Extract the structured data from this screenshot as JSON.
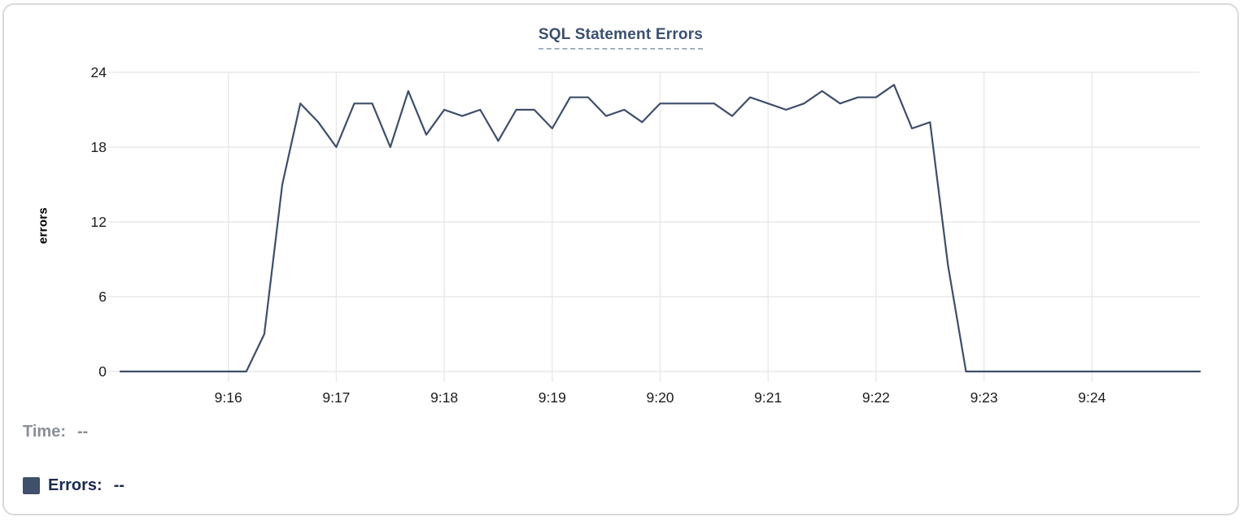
{
  "card": {
    "background": "#ffffff",
    "border_color": "#d9d9d9"
  },
  "chart_data": {
    "type": "line",
    "title": "SQL Statement Errors",
    "xlabel": "",
    "ylabel": "errors",
    "x_tick_labels": [
      "9:16",
      "9:17",
      "9:18",
      "9:19",
      "9:20",
      "9:21",
      "9:22",
      "9:23",
      "9:24"
    ],
    "y_tick_labels": [
      "0",
      "6",
      "12",
      "18",
      "24"
    ],
    "ylim": [
      0,
      24
    ],
    "x_axis_time_range": [
      "9:15:00",
      "9:25:00"
    ],
    "sample_interval_seconds": 10,
    "grid": true,
    "grid_color": "#e8e8e8",
    "axis_text_color": "#1c1c1c",
    "legend_position": "bottom-left",
    "series": [
      {
        "name": "Errors",
        "color": "#3d4e6a",
        "times": [
          "9:15:00",
          "9:15:10",
          "9:15:20",
          "9:15:30",
          "9:15:40",
          "9:15:50",
          "9:16:00",
          "9:16:10",
          "9:16:20",
          "9:16:30",
          "9:16:40",
          "9:16:50",
          "9:17:00",
          "9:17:10",
          "9:17:20",
          "9:17:30",
          "9:17:40",
          "9:17:50",
          "9:18:00",
          "9:18:10",
          "9:18:20",
          "9:18:30",
          "9:18:40",
          "9:18:50",
          "9:19:00",
          "9:19:10",
          "9:19:20",
          "9:19:30",
          "9:19:40",
          "9:19:50",
          "9:20:00",
          "9:20:10",
          "9:20:20",
          "9:20:30",
          "9:20:40",
          "9:20:50",
          "9:21:00",
          "9:21:10",
          "9:21:20",
          "9:21:30",
          "9:21:40",
          "9:21:50",
          "9:22:00",
          "9:22:10",
          "9:22:20",
          "9:22:30",
          "9:22:40",
          "9:22:50",
          "9:23:00",
          "9:23:10",
          "9:23:20",
          "9:23:30",
          "9:23:40",
          "9:23:50",
          "9:24:00",
          "9:24:10",
          "9:24:20",
          "9:24:30",
          "9:24:40",
          "9:24:50",
          "9:25:00"
        ],
        "values": [
          0,
          0,
          0,
          0,
          0,
          0,
          0,
          0,
          3,
          15,
          21.5,
          20,
          18,
          21.5,
          21.5,
          18,
          22.5,
          19,
          21,
          20.5,
          21,
          18.5,
          21,
          21,
          19.5,
          22,
          22,
          20.5,
          21,
          20,
          21.5,
          21.5,
          21.5,
          21.5,
          20.5,
          22,
          21.5,
          21,
          21.5,
          22.5,
          21.5,
          22,
          22,
          23,
          19.5,
          20,
          8.5,
          0,
          0,
          0,
          0,
          0,
          0,
          0,
          0,
          0,
          0,
          0,
          0,
          0,
          0
        ]
      }
    ]
  },
  "legend": {
    "time_label": "Time:",
    "time_value": "--",
    "errors_label": "Errors:",
    "errors_value": "--",
    "errors_swatch_color": "#3f506b"
  },
  "colors": {
    "line": "#3d4e6a",
    "title": "#3a5070",
    "title_underline": "#a2aec4",
    "grid": "#e8e8e8",
    "axis_text": "#1c1c1c",
    "time_text": "#8a8e97",
    "errors_text": "#1b2a52"
  }
}
